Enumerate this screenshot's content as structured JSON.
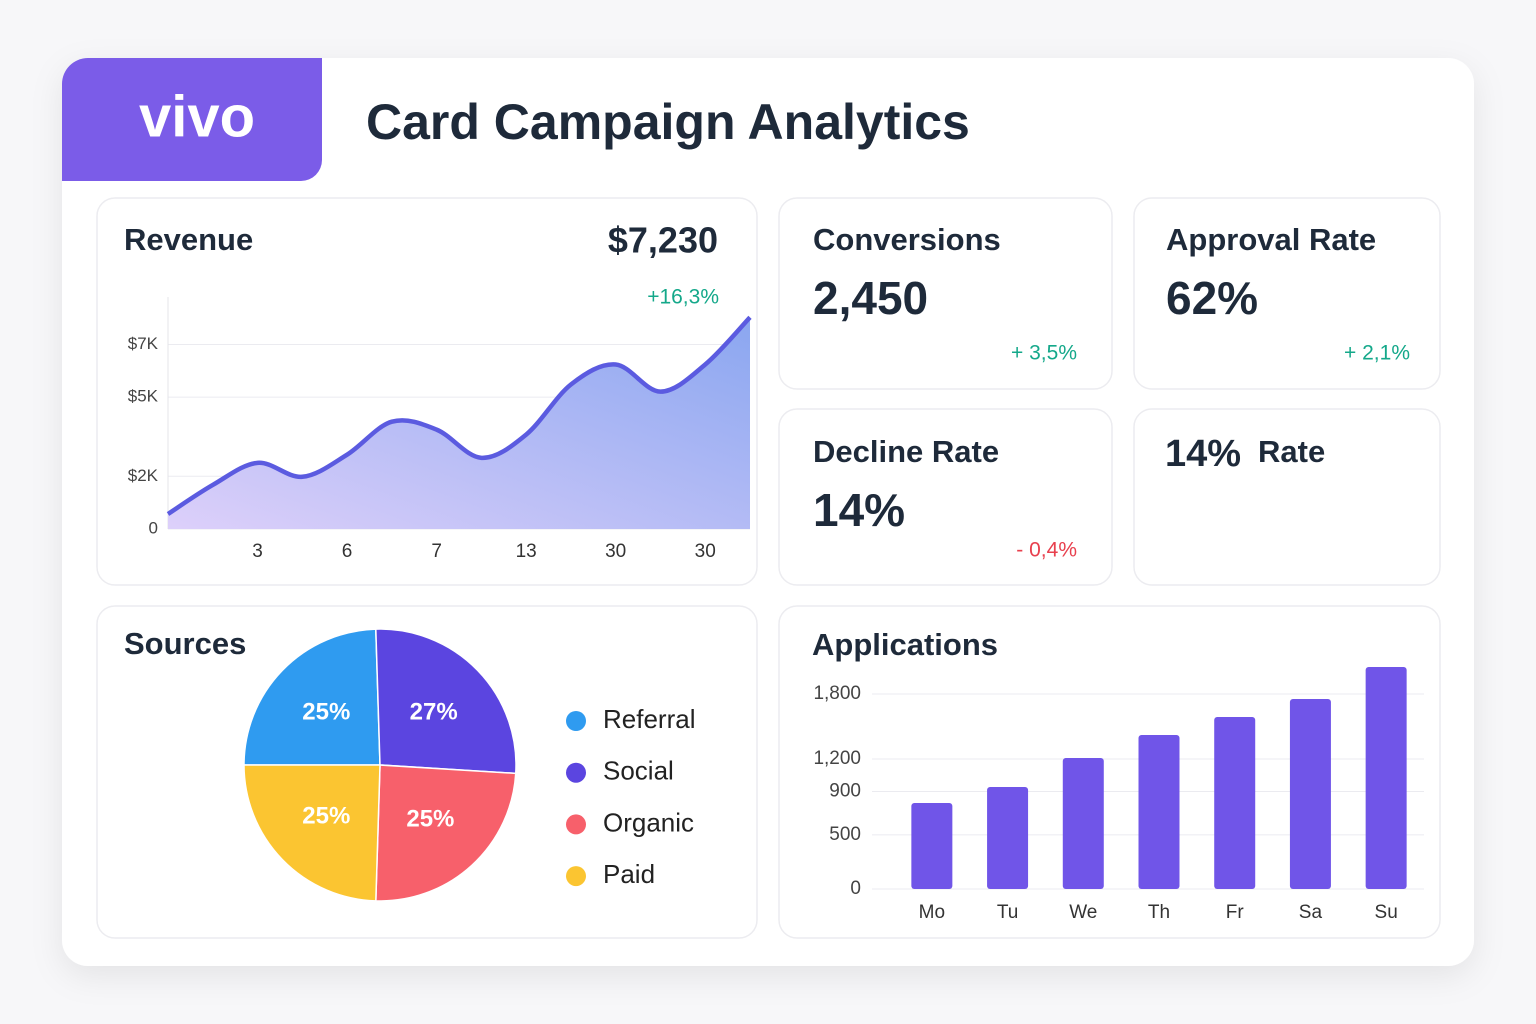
{
  "header": {
    "logo": "vivo",
    "title": "Card Campaign Analytics"
  },
  "kpis": [
    {
      "title": "Conversions",
      "value": "2,450",
      "change": "+ 3,5%",
      "color": "#14a88a"
    },
    {
      "title": "Approval Rate",
      "value": "62%",
      "change": "+ 2,1%",
      "color": "#14a88a"
    },
    {
      "title": "Decline Rate",
      "value": "14%",
      "change": "- 0,4%",
      "color": "#e8404e"
    },
    {
      "value": "14%",
      "title": "Rate"
    }
  ],
  "chart_data": [
    {
      "type": "line",
      "title": "Revenue",
      "total": "$7,230",
      "change": "+16,3%",
      "change_color": "#14a88a",
      "categories": [
        null,
        null,
        "3",
        null,
        "6",
        null,
        "7",
        null,
        "13",
        null,
        "30",
        null,
        "30",
        null
      ],
      "values": [
        570,
        1670,
        2510,
        1980,
        2820,
        4070,
        3770,
        2700,
        3580,
        5480,
        6240,
        5210,
        6240,
        8030
      ],
      "color": "#5b5be0",
      "ylim": [
        0,
        8800
      ],
      "yticks": [
        0,
        {
          "value": 2000,
          "label": "$2K"
        },
        {
          "value": 5000,
          "label": "$5K"
        },
        {
          "value": 7000,
          "label": "$7K"
        }
      ],
      "grid": true
    },
    {
      "type": "pie",
      "title": "Sources",
      "categories": [
        "Referral",
        "Social",
        "Organic",
        "Paid"
      ],
      "values": [
        25,
        27,
        25,
        25
      ],
      "value_labels": [
        "25%",
        "27%",
        "25%",
        "25%"
      ],
      "colors": [
        "#2f9bf0",
        "#5b45e0",
        "#f7606b",
        "#fbc531"
      ]
    },
    {
      "type": "bar",
      "title": "Applications",
      "categories": [
        "Mo",
        "Tu",
        "We",
        "Th",
        "Fr",
        "Sa",
        "Su"
      ],
      "values": [
        794,
        942,
        1209,
        1422,
        1588,
        1754,
        2049
      ],
      "color": "#7055e8",
      "ylim": [
        0,
        2100
      ],
      "yticks": [
        0,
        500,
        900,
        {
          "value": 1200,
          "label": "1,200"
        },
        {
          "value": 1800,
          "label": "1,800"
        }
      ],
      "grid": true
    }
  ]
}
